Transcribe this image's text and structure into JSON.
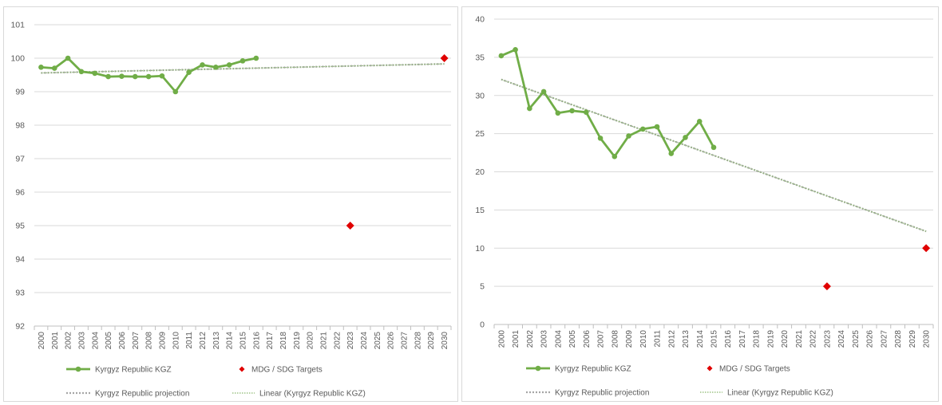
{
  "colors": {
    "series": "#70ad47",
    "target": "#e00000",
    "projection": "#a6a6a6",
    "linear": "#8bb86e",
    "grid": "#d9d9d9",
    "text": "#595959"
  },
  "chart_data": [
    {
      "type": "line",
      "title": "",
      "xlabel": "",
      "ylabel": "",
      "x": [
        "2000",
        "2001",
        "2002",
        "2003",
        "2004",
        "2005",
        "2006",
        "2007",
        "2008",
        "2009",
        "2010",
        "2011",
        "2012",
        "2013",
        "2014",
        "2015",
        "2016",
        "2017",
        "2018",
        "2019",
        "2020",
        "2021",
        "2022",
        "2023",
        "2024",
        "2025",
        "2026",
        "2027",
        "2028",
        "2029",
        "2030"
      ],
      "ylim": [
        92,
        101
      ],
      "yticks": [
        "92",
        "93",
        "94",
        "95",
        "96",
        "97",
        "98",
        "99",
        "100",
        "101"
      ],
      "grid": true,
      "legend_position": "bottom",
      "series": [
        {
          "name": "Kyrgyz Republic KGZ",
          "kind": "line-markers",
          "x": [
            "2000",
            "2001",
            "2002",
            "2003",
            "2004",
            "2005",
            "2006",
            "2007",
            "2008",
            "2009",
            "2010",
            "2011",
            "2012",
            "2013",
            "2014",
            "2015",
            "2016"
          ],
          "y": [
            99.73,
            99.7,
            100.0,
            99.6,
            99.55,
            99.45,
            99.46,
            99.45,
            99.45,
            99.47,
            99.0,
            99.58,
            99.8,
            99.73,
            99.8,
            99.92,
            100.0
          ]
        },
        {
          "name": "MDG / SDG Targets",
          "kind": "markers",
          "x": [
            "2023",
            "2030"
          ],
          "y": [
            95,
            100
          ]
        },
        {
          "name": "Kyrgyz Republic projection",
          "kind": "dotted",
          "x": [
            "2000",
            "2030"
          ],
          "y": [
            99.56,
            99.83
          ]
        },
        {
          "name": "Linear (Kyrgyz Republic KGZ)",
          "kind": "dotted-thin",
          "x": [
            "2000",
            "2030"
          ],
          "y": [
            99.56,
            99.83
          ]
        }
      ],
      "legend": [
        "Kyrgyz Republic KGZ",
        "MDG / SDG Targets",
        "Kyrgyz Republic projection",
        "Linear (Kyrgyz Republic KGZ)"
      ]
    },
    {
      "type": "line",
      "title": "",
      "xlabel": "",
      "ylabel": "",
      "x": [
        "2000",
        "2001",
        "2002",
        "2003",
        "2004",
        "2005",
        "2006",
        "2007",
        "2008",
        "2009",
        "2010",
        "2011",
        "2012",
        "2013",
        "2014",
        "2015",
        "2016",
        "2017",
        "2018",
        "2019",
        "2020",
        "2021",
        "2022",
        "2023",
        "2024",
        "2025",
        "2026",
        "2027",
        "2028",
        "2029",
        "2030"
      ],
      "ylim": [
        0,
        40
      ],
      "yticks": [
        "0",
        "5",
        "10",
        "15",
        "20",
        "25",
        "30",
        "35",
        "40"
      ],
      "grid": true,
      "legend_position": "bottom",
      "series": [
        {
          "name": "Kyrgyz Republic KGZ",
          "kind": "line-markers",
          "x": [
            "2000",
            "2001",
            "2002",
            "2003",
            "2004",
            "2005",
            "2006",
            "2007",
            "2008",
            "2009",
            "2010",
            "2011",
            "2012",
            "2013",
            "2014",
            "2015"
          ],
          "y": [
            35.2,
            36.0,
            28.3,
            30.5,
            27.7,
            28.0,
            27.8,
            24.4,
            22.0,
            24.7,
            25.6,
            25.9,
            22.4,
            24.5,
            26.6,
            23.2
          ]
        },
        {
          "name": "MDG / SDG Targets",
          "kind": "markers",
          "x": [
            "2023",
            "2030"
          ],
          "y": [
            5,
            10
          ]
        },
        {
          "name": "Kyrgyz Republic projection",
          "kind": "dotted",
          "x": [
            "2000",
            "2030"
          ],
          "y": [
            32.1,
            12.2
          ]
        },
        {
          "name": "Linear (Kyrgyz Republic KGZ)",
          "kind": "dotted-thin",
          "x": [
            "2000",
            "2030"
          ],
          "y": [
            32.1,
            12.2
          ]
        }
      ],
      "legend": [
        "Kyrgyz Republic KGZ",
        "MDG / SDG Targets",
        "Kyrgyz Republic projection",
        "Linear (Kyrgyz Republic KGZ)"
      ]
    }
  ]
}
